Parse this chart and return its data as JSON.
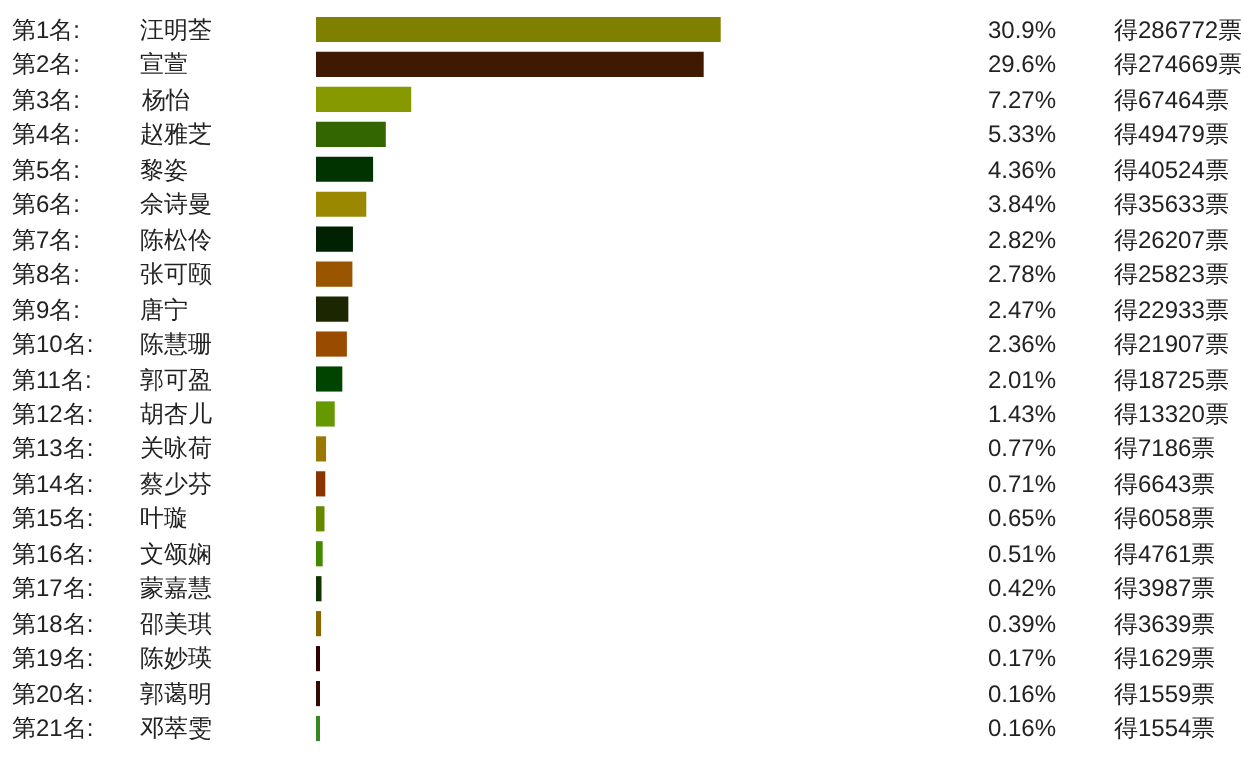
{
  "chart_data": {
    "type": "bar",
    "orientation": "horizontal",
    "tick_labels": false,
    "grid": false,
    "categories": [
      "汪明荃",
      "宣萱",
      "杨怡",
      "赵雅芝",
      "黎姿",
      "佘诗曼",
      "陈松伶",
      "张可颐",
      "唐宁",
      "陈慧珊",
      "郭可盈",
      "胡杏儿",
      "关咏荷",
      "蔡少芬",
      "叶璇",
      "文颂娴",
      "蒙嘉慧",
      "邵美琪",
      "陈妙瑛",
      "郭蔼明",
      "邓萃雯"
    ],
    "values": [
      30.9,
      29.6,
      7.27,
      5.33,
      4.36,
      3.84,
      2.82,
      2.78,
      2.47,
      2.36,
      2.01,
      1.43,
      0.77,
      0.71,
      0.65,
      0.51,
      0.42,
      0.39,
      0.17,
      0.16,
      0.16
    ],
    "value_labels": [
      "30.9%",
      "29.6%",
      "7.27%",
      "5.33%",
      "4.36%",
      "3.84%",
      "2.82%",
      "2.78%",
      "2.47%",
      "2.36%",
      "2.01%",
      "1.43%",
      "0.77%",
      "0.71%",
      "0.65%",
      "0.51%",
      "0.42%",
      "0.39%",
      "0.17%",
      "0.16%",
      "0.16%"
    ],
    "colors": [
      "#808000",
      "#3f1a00",
      "#869a00",
      "#336600",
      "#003300",
      "#998800",
      "#002200",
      "#995500",
      "#1c2600",
      "#994c00",
      "#004400",
      "#669900",
      "#997700",
      "#883300",
      "#668800",
      "#448800",
      "#113300",
      "#886600",
      "#330000",
      "#330a00",
      "#338822"
    ],
    "annotations": [
      "第1名:",
      "第2名:",
      "第3名:",
      "第4名:",
      "第5名:",
      "第6名:",
      "第7名:",
      "第8名:",
      "第9名:",
      "第10名:",
      "第11名:",
      "第12名:",
      "第13名:",
      "第14名:",
      "第15名:",
      "第16名:",
      "第17名:",
      "第18名:",
      "第19名:",
      "第20名:",
      "第21名:",
      "得286772票",
      "得274669票",
      "得67464票",
      "得49479票",
      "得40524票",
      "得35633票",
      "得26207票",
      "得25823票",
      "得22933票",
      "得21907票",
      "得18725票",
      "得13320票",
      "得7186票",
      "得6643票",
      "得6058票",
      "得4761票",
      "得3987票",
      "得3639票",
      "得1629票",
      "得1559票",
      "得1554票"
    ]
  }
}
